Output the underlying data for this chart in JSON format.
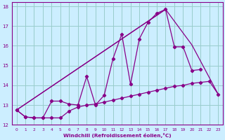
{
  "xlabel": "Windchill (Refroidissement éolien,°C)",
  "bg_color": "#cceeff",
  "grid_color": "#99cccc",
  "line_color": "#880088",
  "xlim": [
    -0.5,
    23.5
  ],
  "ylim": [
    12,
    18.2
  ],
  "xticks": [
    0,
    1,
    2,
    3,
    4,
    5,
    6,
    7,
    8,
    9,
    10,
    11,
    12,
    13,
    14,
    15,
    16,
    17,
    18,
    19,
    20,
    21,
    22,
    23
  ],
  "yticks": [
    12,
    13,
    14,
    15,
    16,
    17,
    18
  ],
  "s1x": [
    0,
    1,
    2,
    3,
    4,
    5,
    6,
    7,
    8,
    9,
    10,
    11,
    12,
    13,
    14,
    15,
    16,
    17,
    18,
    19,
    20,
    21,
    22,
    23
  ],
  "s1y": [
    12.75,
    12.4,
    12.35,
    12.35,
    12.35,
    12.35,
    12.7,
    12.9,
    13.0,
    13.05,
    13.15,
    13.25,
    13.35,
    13.45,
    13.55,
    13.65,
    13.75,
    13.85,
    13.95,
    14.0,
    14.1,
    14.15,
    14.2,
    13.55
  ],
  "s2x": [
    0,
    1,
    2,
    3,
    4,
    5,
    6,
    7,
    8,
    9,
    10,
    11,
    12,
    13,
    14,
    15,
    16,
    17,
    18,
    19,
    20,
    21
  ],
  "s2y": [
    12.75,
    12.4,
    12.35,
    12.35,
    13.2,
    13.2,
    13.05,
    13.0,
    14.45,
    13.0,
    13.5,
    15.35,
    16.6,
    14.05,
    16.35,
    17.2,
    17.65,
    17.85,
    15.95,
    15.95,
    14.75,
    14.8
  ],
  "s3x": [
    0,
    17
  ],
  "s3y": [
    12.75,
    17.85
  ],
  "s4x": [
    0,
    17,
    20,
    23
  ],
  "s4y": [
    12.75,
    17.85,
    16.05,
    13.55
  ]
}
